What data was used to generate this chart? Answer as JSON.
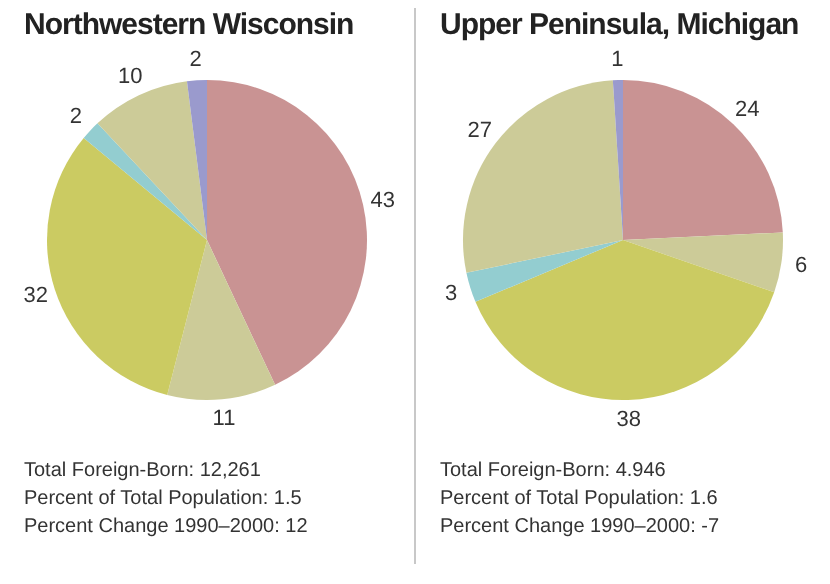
{
  "chart_data": [
    {
      "type": "pie",
      "title": "Northwestern Wisconsin",
      "categories": [
        null,
        null,
        null,
        null,
        null,
        null
      ],
      "values": [
        43,
        11,
        32,
        2,
        10,
        2
      ],
      "colors": [
        "#c99393",
        "#cccb98",
        "#cbcb62",
        "#93cdd0",
        "#cccb98",
        "#9a9acd"
      ],
      "data_labels": true,
      "annotations": [
        "Total Foreign-Born: 12,261",
        "Percent of Total Population: 1.5",
        "Percent Change 1990–2000: 12"
      ]
    },
    {
      "type": "pie",
      "title": "Upper Peninsula, Michigan",
      "categories": [
        null,
        null,
        null,
        null,
        null,
        null
      ],
      "values": [
        24,
        6,
        38,
        3,
        27,
        1
      ],
      "colors": [
        "#c99393",
        "#cccb98",
        "#cbcb62",
        "#93cdd0",
        "#cccb98",
        "#9a9acd"
      ],
      "data_labels": true,
      "annotations": [
        "Total Foreign-Born: 4.946",
        "Percent of Total Population: 1.6",
        "Percent Change 1990–2000: -7"
      ]
    }
  ]
}
